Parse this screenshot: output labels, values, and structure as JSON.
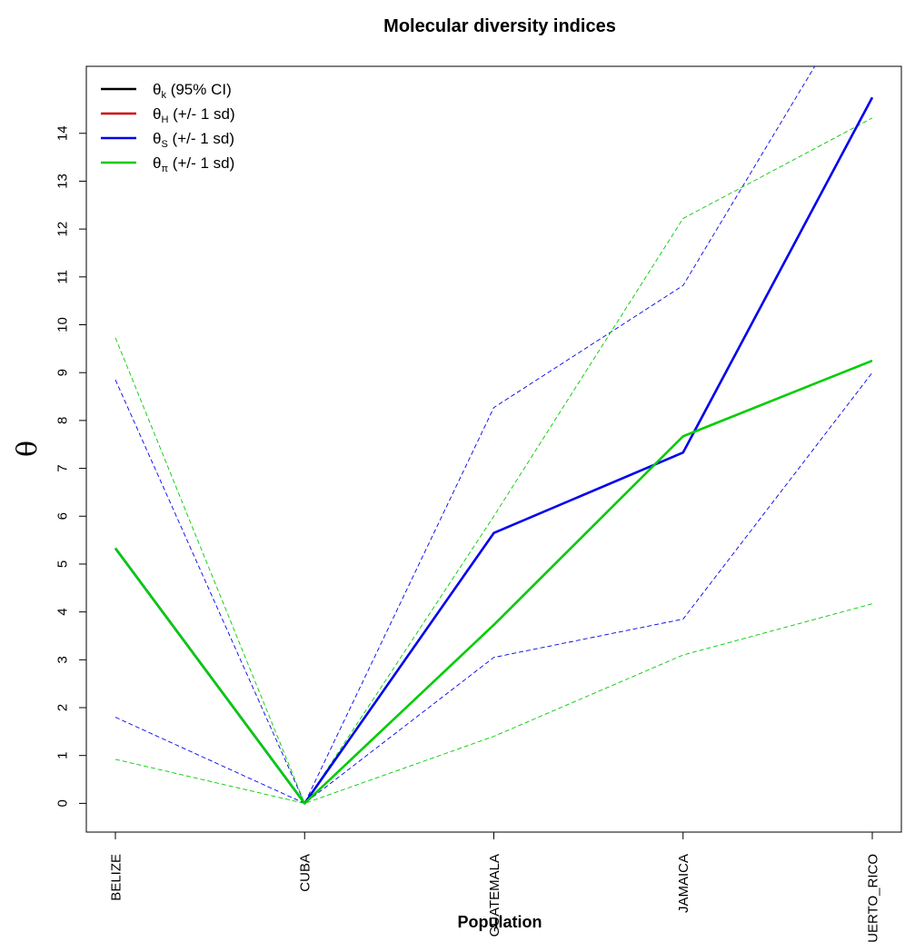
{
  "chart_data": {
    "type": "line",
    "title": "Molecular diversity indices",
    "xlabel": "Population",
    "ylabel": "θ",
    "categories": [
      "BELIZE",
      "CUBA",
      "GUATEMALA",
      "JAMAICA",
      "PUERTO_RICO"
    ],
    "ylim": [
      -0.6,
      15.4
    ],
    "yticks": [
      0,
      1,
      2,
      3,
      4,
      5,
      6,
      7,
      8,
      9,
      10,
      11,
      12,
      13,
      14
    ],
    "grid": false,
    "legend_position": "top-left",
    "legend": [
      {
        "symbol": "θ",
        "sub": "k",
        "suffix": " (95% CI)",
        "color": "#000000"
      },
      {
        "symbol": "θ",
        "sub": "H",
        "suffix": " (+/- 1 sd)",
        "color": "#cc0000"
      },
      {
        "symbol": "θ",
        "sub": "S",
        "suffix": " (+/- 1 sd)",
        "color": "#0000ee"
      },
      {
        "symbol": "θ",
        "sub": "π",
        "suffix": " (+/- 1 sd)",
        "color": "#00cc00"
      }
    ],
    "series": [
      {
        "name": "θS",
        "color": "#0000ee",
        "style": "solid",
        "values": [
          5.33,
          0.0,
          5.65,
          7.33,
          14.75
        ]
      },
      {
        "name": "θS upper",
        "color": "#0000ee",
        "style": "dashed",
        "values": [
          8.85,
          0.0,
          8.27,
          10.82,
          17.4
        ]
      },
      {
        "name": "θS lower",
        "color": "#0000ee",
        "style": "dashed",
        "values": [
          1.8,
          0.0,
          3.05,
          3.85,
          9.0
        ]
      },
      {
        "name": "θπ",
        "color": "#00cc00",
        "style": "solid",
        "values": [
          5.33,
          0.0,
          3.73,
          7.67,
          9.25
        ]
      },
      {
        "name": "θπ upper",
        "color": "#00cc00",
        "style": "dashed",
        "values": [
          9.73,
          0.0,
          6.0,
          12.22,
          14.32
        ]
      },
      {
        "name": "θπ lower",
        "color": "#00cc00",
        "style": "dashed",
        "values": [
          0.92,
          0.0,
          1.4,
          3.1,
          4.17
        ]
      }
    ]
  }
}
